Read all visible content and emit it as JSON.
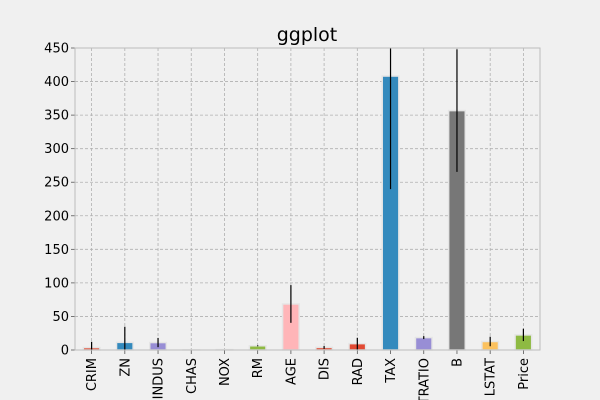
{
  "chart_data": {
    "type": "bar",
    "title": "ggplot",
    "xlabel": "",
    "ylabel": "",
    "categories": [
      "CRIM",
      "ZN",
      "INDUS",
      "CHAS",
      "NOX",
      "RM",
      "AGE",
      "DIS",
      "RAD",
      "TAX",
      "PTRATIO",
      "B",
      "LSTAT",
      "Price"
    ],
    "values": [
      3.6,
      11.4,
      11.1,
      0.07,
      0.55,
      6.3,
      68.6,
      3.8,
      9.5,
      408.2,
      18.5,
      356.7,
      12.7,
      22.5
    ],
    "error_bars": [
      8.6,
      23.3,
      6.9,
      0.25,
      0.12,
      0.7,
      28.1,
      2.1,
      8.7,
      168.5,
      2.2,
      91.3,
      7.1,
      9.2
    ],
    "bar_colors": [
      "#E24A33",
      "#348ABD",
      "#988ED5",
      "#777777",
      "#FBC15E",
      "#8EBA42",
      "#FFB5B8",
      "#E24A33",
      "#E24A33",
      "#348ABD",
      "#988ED5",
      "#777777",
      "#FBC15E",
      "#8EBA42"
    ],
    "ylim": [
      0,
      450
    ],
    "yticks": [
      0,
      50,
      100,
      150,
      200,
      250,
      300,
      350,
      400,
      450
    ],
    "grid": true,
    "legend": "none",
    "style": {
      "plot_background": "#f0f0f0",
      "grid_color": "#b0b0b0",
      "axis_color": "#bcbcbc",
      "bar_edge_color": "#e5e5e5",
      "error_bar_color": "#000000"
    }
  }
}
